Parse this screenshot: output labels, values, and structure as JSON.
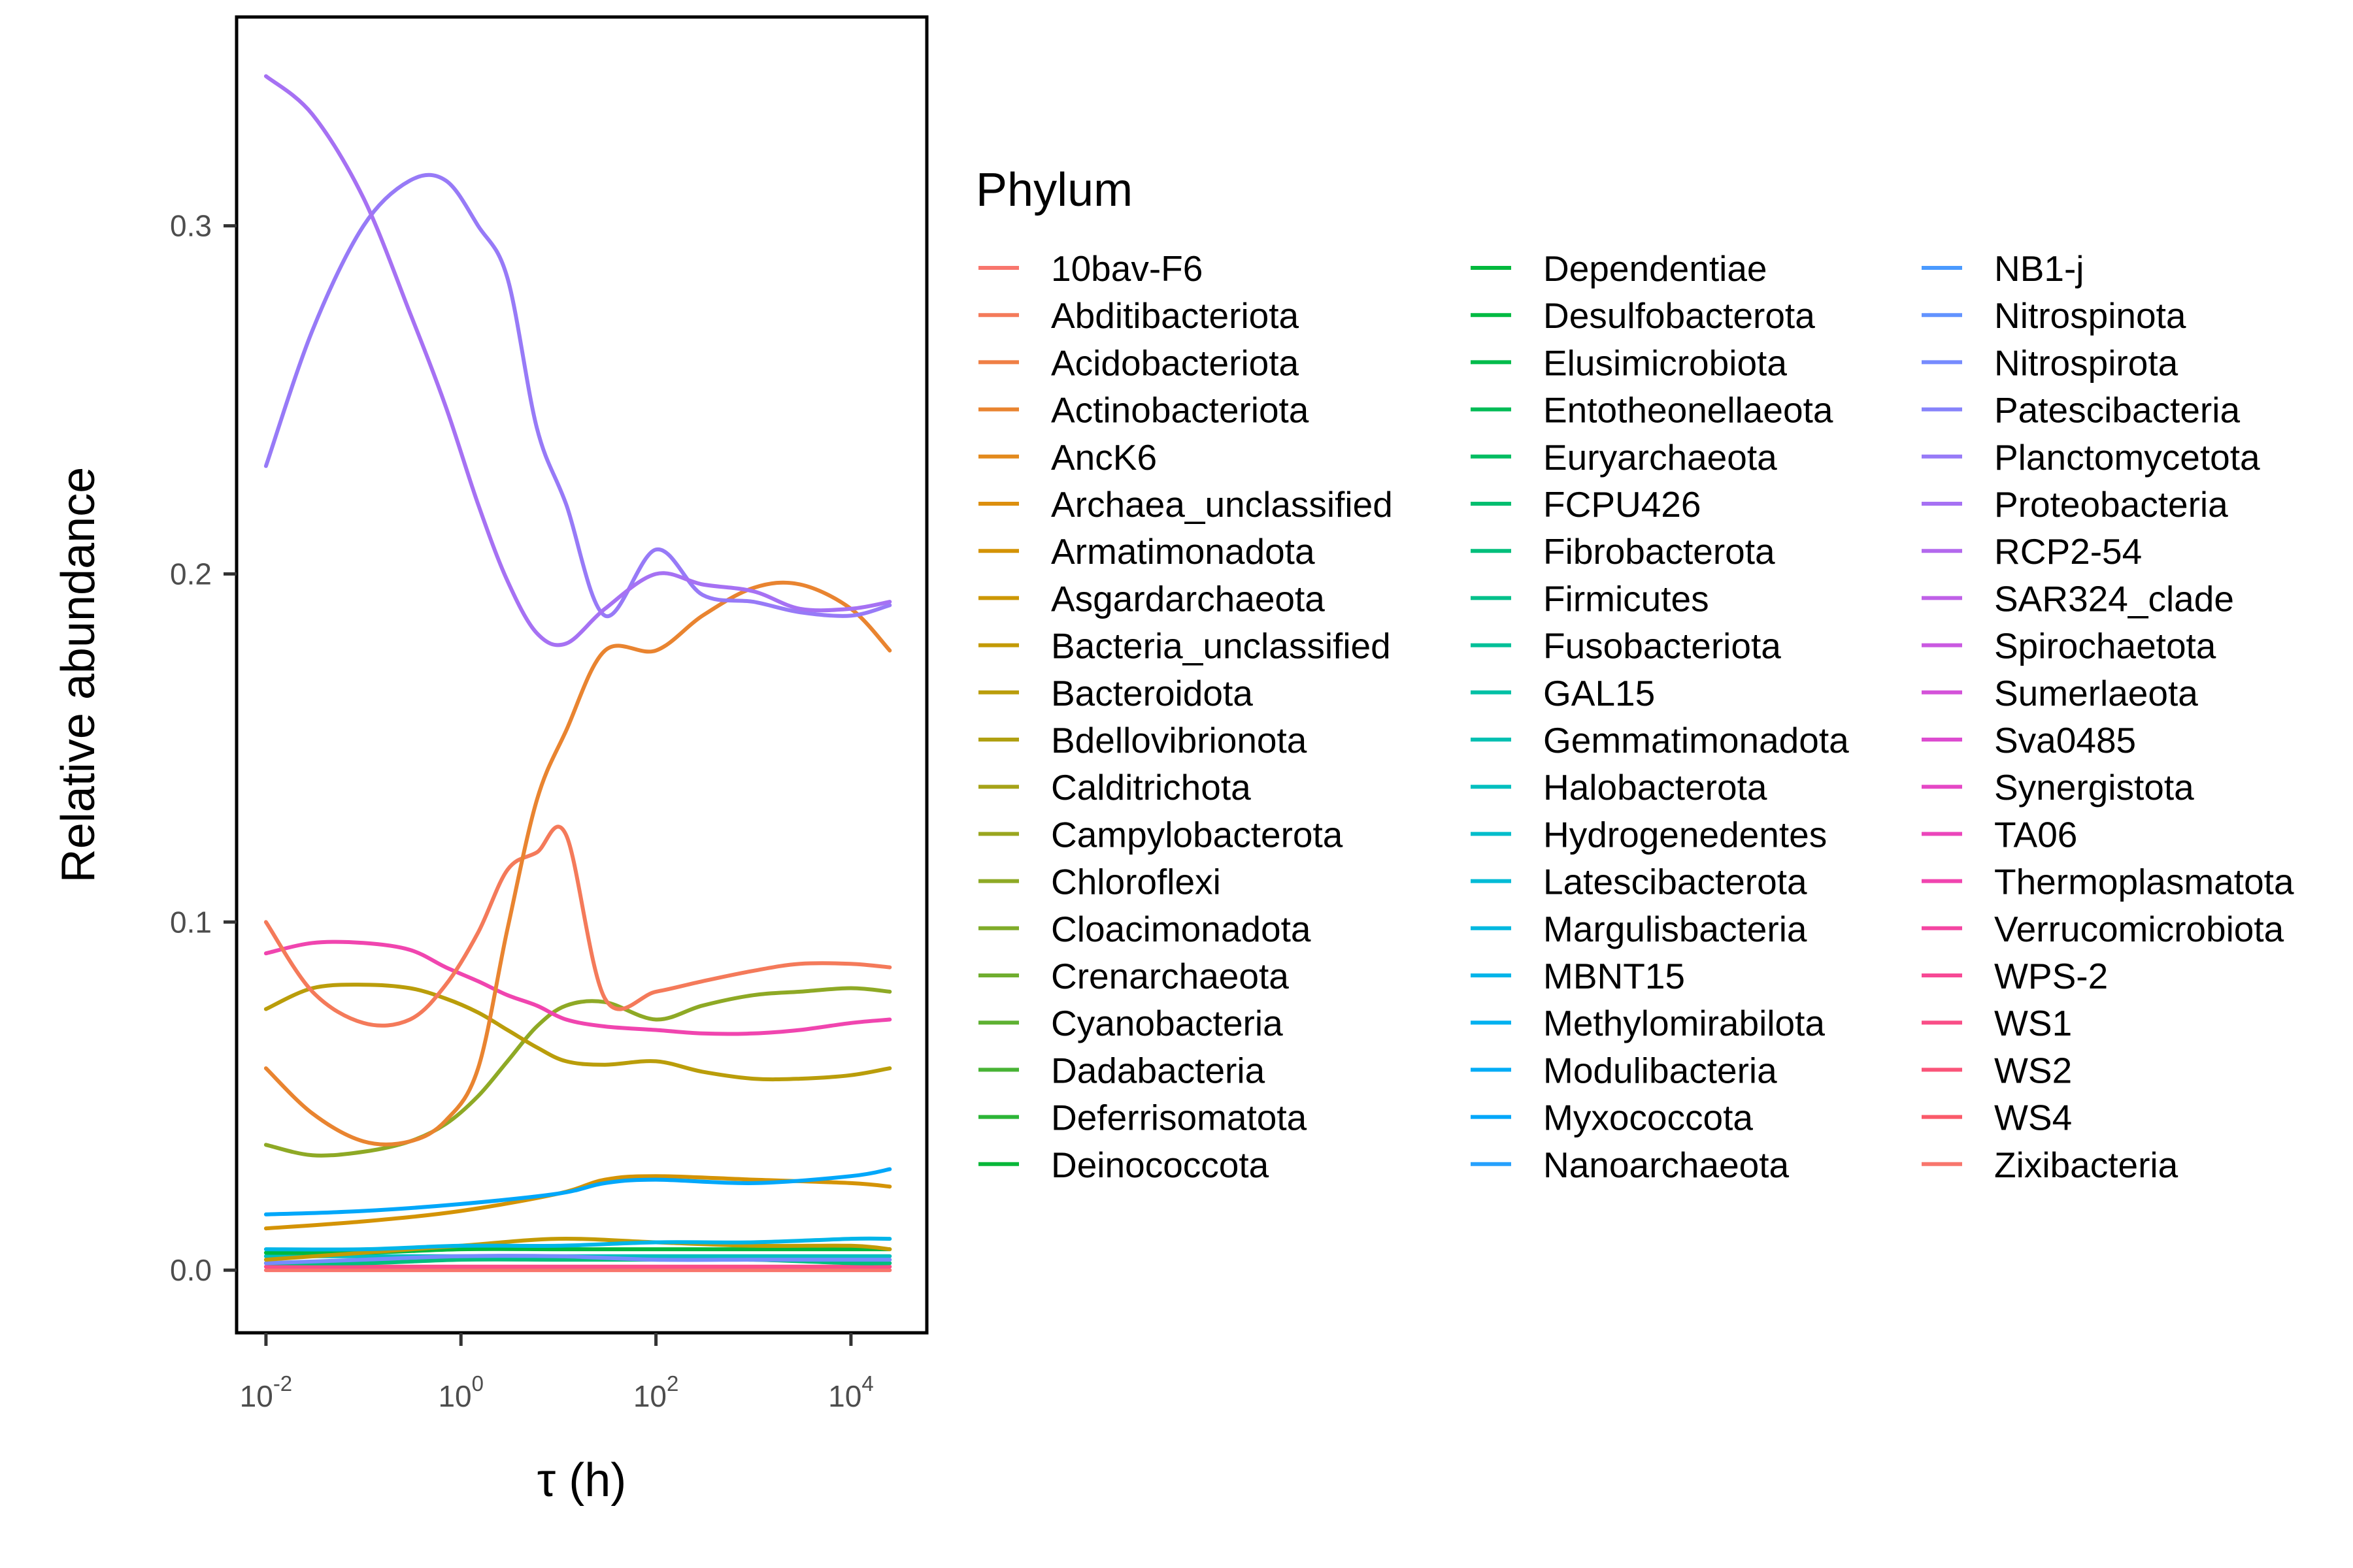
{
  "chart_data": {
    "type": "line",
    "xlabel": "τ (h)",
    "ylabel": "Relative abundance",
    "x_scale": "log10",
    "xlim": [
      0.005,
      60000
    ],
    "ylim": [
      -0.018,
      0.36
    ],
    "x_ticks": [
      {
        "base": "10",
        "exp": "-2",
        "value": 0.01
      },
      {
        "base": "10",
        "exp": "0",
        "value": 1
      },
      {
        "base": "10",
        "exp": "2",
        "value": 100
      },
      {
        "base": "10",
        "exp": "4",
        "value": 10000
      }
    ],
    "y_ticks": [
      {
        "label": "0.0",
        "value": 0
      },
      {
        "label": "0.1",
        "value": 0.1
      },
      {
        "label": "0.2",
        "value": 0.2
      },
      {
        "label": "0.3",
        "value": 0.3
      }
    ],
    "grid": false,
    "legend": {
      "title": "Phylum",
      "position": "right",
      "columns": 3,
      "entries": [
        {
          "name": "10bav-F6",
          "color": "#F8766D"
        },
        {
          "name": "Abditibacteriota",
          "color": "#F47A5A"
        },
        {
          "name": "Acidobacteriota",
          "color": "#EF7F45"
        },
        {
          "name": "Actinobacteriota",
          "color": "#E98430"
        },
        {
          "name": "AncK6",
          "color": "#E38A1D"
        },
        {
          "name": "Archaea_unclassified",
          "color": "#DC8F0E"
        },
        {
          "name": "Armatimonadota",
          "color": "#D49305"
        },
        {
          "name": "Asgardarchaeota",
          "color": "#CC9703"
        },
        {
          "name": "Bacteria_unclassified",
          "color": "#C39A05"
        },
        {
          "name": "Bacteroidota",
          "color": "#BA9D0A"
        },
        {
          "name": "Bdellovibrionota",
          "color": "#B0A011"
        },
        {
          "name": "Calditrichota",
          "color": "#A6A318"
        },
        {
          "name": "Campylobacterota",
          "color": "#9AA61F"
        },
        {
          "name": "Chloroflexi",
          "color": "#8EA925"
        },
        {
          "name": "Cloacimonadota",
          "color": "#80AC2A"
        },
        {
          "name": "Crenarchaeota",
          "color": "#70AE2F"
        },
        {
          "name": "Cyanobacteria",
          "color": "#5EB132",
          "hidden": false
        },
        {
          "name": "Dadabacteria",
          "color": "#48B335"
        },
        {
          "name": "Deferrisomatota",
          "color": "#2CB537"
        },
        {
          "name": "Deinococcota",
          "color": "#08B739"
        },
        {
          "name": "Dependentiae",
          "color": "#00B93C"
        },
        {
          "name": "Desulfobacterota",
          "color": "#00BA42"
        },
        {
          "name": "Elusimicrobiota",
          "color": "#00BB4B"
        },
        {
          "name": "Entotheonellaeota",
          "color": "#00BC56"
        },
        {
          "name": "Euryarchaeota",
          "color": "#00BD62"
        },
        {
          "name": "FCPU426",
          "color": "#00BE6F"
        },
        {
          "name": "Fibrobacterota",
          "color": "#00BF7C"
        },
        {
          "name": "Firmicutes",
          "color": "#00C08A"
        },
        {
          "name": "Fusobacteriota",
          "color": "#00C098"
        },
        {
          "name": "GAL15",
          "color": "#00C0A5"
        },
        {
          "name": "Gemmatimonadota",
          "color": "#00C0B2"
        },
        {
          "name": "Halobacterota",
          "color": "#00BFBF"
        },
        {
          "name": "Hydrogenedentes",
          "color": "#00BDCB"
        },
        {
          "name": "Latescibacterota",
          "color": "#00BBD6"
        },
        {
          "name": "Margulisbacteria",
          "color": "#00B8E0"
        },
        {
          "name": "MBNT15",
          "color": "#00B5E9"
        },
        {
          "name": "Methylomirabilota",
          "color": "#00B1F0"
        },
        {
          "name": "Modulibacteria",
          "color": "#00ACF6"
        },
        {
          "name": "Myxococcota",
          "color": "#00A7FA"
        },
        {
          "name": "Nanoarchaeota",
          "color": "#26A1FD"
        },
        {
          "name": "NB1-j",
          "color": "#4A9AFF"
        },
        {
          "name": "Nitrospinota",
          "color": "#6293FF"
        },
        {
          "name": "Nitrospirota",
          "color": "#768BFE"
        },
        {
          "name": "Patescibacteria",
          "color": "#8783FB"
        },
        {
          "name": "Planctomycetota",
          "color": "#977AF7"
        },
        {
          "name": "Proteobacteria",
          "color": "#A671F3"
        },
        {
          "name": "RCP2-54",
          "color": "#B369ED"
        },
        {
          "name": "SAR324_clade",
          "color": "#BF60E7"
        },
        {
          "name": "Spirochaetota",
          "color": "#CA59E1"
        },
        {
          "name": "Sumerlaeota",
          "color": "#D452D9"
        },
        {
          "name": "Sva0485",
          "color": "#DD4CD0"
        },
        {
          "name": "Synergistota",
          "color": "#E548C6"
        },
        {
          "name": "TA06",
          "color": "#EB46BB"
        },
        {
          "name": "Thermoplasmatota",
          "color": "#F045AF"
        },
        {
          "name": "Verrucomicrobiota",
          "color": "#F446A2"
        },
        {
          "name": "WPS-2",
          "color": "#F74995"
        },
        {
          "name": "WS1",
          "color": "#F94E87"
        },
        {
          "name": "WS2",
          "color": "#FA5479"
        },
        {
          "name": "WS4",
          "color": "#FA5A6A"
        },
        {
          "name": "Zixibacteria",
          "color": "#F8766D"
        }
      ]
    },
    "series": [
      {
        "legend_index": 45,
        "x": [
          0.01,
          0.03,
          0.1,
          0.3,
          0.7,
          1.5,
          3,
          6,
          12,
          30,
          100,
          300,
          1000,
          3000,
          10000,
          25000
        ],
        "y": [
          0.343,
          0.332,
          0.308,
          0.275,
          0.248,
          0.22,
          0.198,
          0.183,
          0.18,
          0.19,
          0.2,
          0.197,
          0.195,
          0.19,
          0.19,
          0.192
        ]
      },
      {
        "legend_index": 44,
        "x": [
          0.01,
          0.03,
          0.1,
          0.3,
          0.7,
          1.5,
          3,
          6,
          12,
          30,
          100,
          300,
          1000,
          3000,
          10000,
          25000
        ],
        "y": [
          0.231,
          0.27,
          0.3,
          0.313,
          0.313,
          0.3,
          0.285,
          0.242,
          0.22,
          0.188,
          0.207,
          0.194,
          0.192,
          0.189,
          0.188,
          0.191
        ]
      },
      {
        "legend_index": 3,
        "x": [
          0.01,
          0.03,
          0.1,
          0.3,
          0.7,
          1.5,
          3,
          6,
          12,
          30,
          100,
          300,
          1000,
          3000,
          10000,
          25000
        ],
        "y": [
          0.058,
          0.045,
          0.037,
          0.037,
          0.043,
          0.058,
          0.098,
          0.135,
          0.155,
          0.178,
          0.178,
          0.188,
          0.196,
          0.197,
          0.19,
          0.178
        ]
      },
      {
        "legend_index": 1,
        "x": [
          0.01,
          0.03,
          0.1,
          0.3,
          0.7,
          1.5,
          3,
          6,
          12,
          30,
          100,
          300,
          1000,
          3000,
          10000,
          25000
        ],
        "y": [
          0.1,
          0.08,
          0.071,
          0.072,
          0.082,
          0.097,
          0.115,
          0.12,
          0.125,
          0.078,
          0.08,
          0.083,
          0.086,
          0.088,
          0.088,
          0.087
        ]
      },
      {
        "legend_index": 53,
        "x": [
          0.01,
          0.03,
          0.1,
          0.3,
          0.7,
          1.5,
          3,
          6,
          12,
          30,
          100,
          300,
          1000,
          3000,
          10000,
          25000
        ],
        "y": [
          0.091,
          0.094,
          0.094,
          0.092,
          0.087,
          0.083,
          0.079,
          0.076,
          0.072,
          0.07,
          0.069,
          0.068,
          0.068,
          0.069,
          0.071,
          0.072
        ]
      },
      {
        "legend_index": 9,
        "x": [
          0.01,
          0.03,
          0.1,
          0.3,
          0.7,
          1.5,
          3,
          6,
          12,
          30,
          100,
          300,
          1000,
          3000,
          10000,
          25000
        ],
        "y": [
          0.075,
          0.081,
          0.082,
          0.081,
          0.078,
          0.074,
          0.069,
          0.064,
          0.06,
          0.059,
          0.06,
          0.057,
          0.055,
          0.055,
          0.056,
          0.058
        ]
      },
      {
        "legend_index": 13,
        "x": [
          0.01,
          0.03,
          0.1,
          0.3,
          0.7,
          1.5,
          3,
          6,
          12,
          30,
          100,
          300,
          1000,
          3000,
          10000,
          25000
        ],
        "y": [
          0.036,
          0.033,
          0.034,
          0.037,
          0.042,
          0.05,
          0.06,
          0.07,
          0.076,
          0.077,
          0.072,
          0.076,
          0.079,
          0.08,
          0.081,
          0.08
        ]
      },
      {
        "legend_index": 38,
        "x": [
          0.01,
          0.1,
          1,
          10,
          30,
          100,
          1000,
          10000,
          25000
        ],
        "y": [
          0.016,
          0.017,
          0.019,
          0.022,
          0.025,
          0.026,
          0.025,
          0.027,
          0.029
        ]
      },
      {
        "legend_index": 6,
        "x": [
          0.01,
          0.1,
          1,
          10,
          30,
          100,
          1000,
          10000,
          25000
        ],
        "y": [
          0.012,
          0.014,
          0.017,
          0.022,
          0.026,
          0.027,
          0.026,
          0.025,
          0.024
        ]
      },
      {
        "legend_index": 35,
        "x": [
          0.01,
          0.1,
          1,
          10,
          100,
          1000,
          10000,
          25000
        ],
        "y": [
          0.006,
          0.006,
          0.007,
          0.007,
          0.008,
          0.008,
          0.009,
          0.009
        ]
      },
      {
        "legend_index": 8,
        "x": [
          0.01,
          0.1,
          1,
          10,
          100,
          1000,
          10000,
          25000
        ],
        "y": [
          0.003,
          0.005,
          0.007,
          0.009,
          0.008,
          0.007,
          0.007,
          0.006
        ]
      },
      {
        "legend_index": 20,
        "x": [
          0.01,
          0.1,
          1,
          10,
          100,
          1000,
          10000,
          25000
        ],
        "y": [
          0.005,
          0.005,
          0.006,
          0.006,
          0.006,
          0.006,
          0.006,
          0.006
        ]
      },
      {
        "legend_index": 42,
        "x": [
          0.01,
          0.1,
          1,
          10,
          100,
          1000,
          10000,
          25000
        ],
        "y": [
          0.002,
          0.003,
          0.004,
          0.004,
          0.003,
          0.003,
          0.003,
          0.003
        ]
      },
      {
        "legend_index": 31,
        "x": [
          0.01,
          0.1,
          1,
          10,
          100,
          1000,
          10000,
          25000
        ],
        "y": [
          0.004,
          0.004,
          0.004,
          0.004,
          0.004,
          0.004,
          0.004,
          0.004
        ]
      },
      {
        "legend_index": 26,
        "x": [
          0.01,
          0.1,
          1,
          10,
          100,
          1000,
          10000,
          25000
        ],
        "y": [
          0.002,
          0.002,
          0.003,
          0.003,
          0.003,
          0.003,
          0.002,
          0.002
        ]
      },
      {
        "legend_index": 56,
        "x": [
          0.01,
          0.1,
          1,
          10,
          100,
          1000,
          10000,
          25000
        ],
        "y": [
          0.001,
          0.001,
          0.001,
          0.001,
          0.001,
          0.001,
          0.001,
          0.001
        ]
      },
      {
        "legend_index": 0,
        "x": [
          0.01,
          0.1,
          1,
          10,
          100,
          1000,
          10000,
          25000
        ],
        "y": [
          0.0,
          0.0,
          0.0,
          0.0,
          0.0,
          0.0,
          0.0,
          0.0
        ]
      }
    ]
  }
}
